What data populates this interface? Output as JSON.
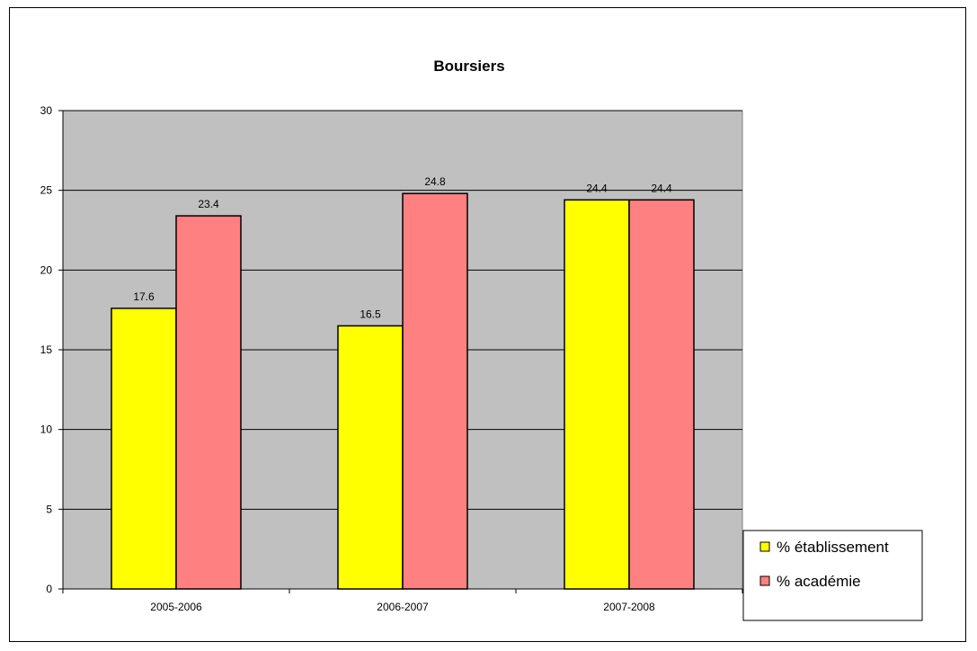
{
  "chart_data": {
    "type": "bar",
    "title": "Boursiers",
    "xlabel": "",
    "ylabel": "",
    "categories": [
      "2005-2006",
      "2006-2007",
      "2007-2008"
    ],
    "series": [
      {
        "name": "% établissement",
        "color": "#ffff00",
        "values": [
          17.6,
          16.5,
          24.4
        ]
      },
      {
        "name": "% académie",
        "color": "#ff8080",
        "values": [
          23.4,
          24.8,
          24.4
        ]
      }
    ],
    "ylim": [
      0,
      30
    ],
    "yticks": [
      0,
      5,
      10,
      15,
      20,
      25,
      30
    ],
    "grid": true,
    "plot_background": "#c0c0c0",
    "legend_position": "right"
  }
}
